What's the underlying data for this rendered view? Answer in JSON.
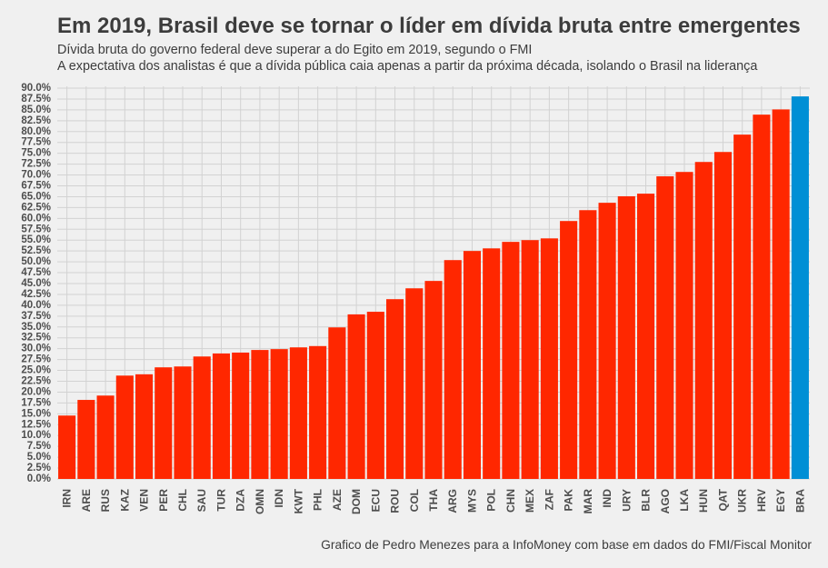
{
  "colors": {
    "background": "#F0F0F0",
    "grid": "#D2D2D2",
    "bar": "#FF2700",
    "highlight": "#008FD5",
    "text": "#3C3C3C"
  },
  "chart_data": {
    "type": "bar",
    "title": "Em 2019, Brasil deve se tornar o líder em dívida bruta entre emergentes",
    "subtitle": [
      "Dívida bruta do governo federal deve superar a do Egito em 2019, segundo o FMI",
      "A expectativa dos analistas é que a dívida pública caia apenas a partir da próxima década, isolando o Brasil na liderança"
    ],
    "caption": "Grafico de Pedro Menezes para a InfoMoney com base em dados do FMI/Fiscal Monitor",
    "xlabel": "",
    "ylabel": "",
    "categories": [
      "IRN",
      "ARE",
      "RUS",
      "KAZ",
      "VEN",
      "PER",
      "CHL",
      "SAU",
      "TUR",
      "DZA",
      "OMN",
      "IDN",
      "KWT",
      "PHL",
      "AZE",
      "DOM",
      "ECU",
      "ROU",
      "COL",
      "THA",
      "ARG",
      "MYS",
      "POL",
      "CHN",
      "MEX",
      "ZAF",
      "PAK",
      "MAR",
      "IND",
      "URY",
      "BLR",
      "AGO",
      "LKA",
      "HUN",
      "QAT",
      "UKR",
      "HRV",
      "EGY",
      "BRA"
    ],
    "values": [
      14.6,
      18.2,
      19.2,
      23.8,
      24.1,
      25.7,
      25.9,
      28.2,
      28.9,
      29.1,
      29.7,
      29.9,
      30.3,
      30.6,
      34.9,
      37.9,
      38.5,
      41.4,
      43.9,
      45.6,
      50.4,
      52.5,
      53.1,
      54.6,
      55.0,
      55.4,
      59.4,
      61.9,
      63.6,
      65.1,
      65.7,
      69.7,
      70.7,
      73.0,
      75.3,
      79.3,
      83.9,
      85.1,
      88.1
    ],
    "highlight_category": "BRA",
    "ylim": [
      0,
      90
    ],
    "y_tick_step": 2.5,
    "y_tick_labels": [
      "0.0%",
      "2.5%",
      "5.0%",
      "7.5%",
      "10.0%",
      "12.5%",
      "15.0%",
      "17.5%",
      "20.0%",
      "22.5%",
      "25.0%",
      "27.5%",
      "30.0%",
      "32.5%",
      "35.0%",
      "37.5%",
      "40.0%",
      "42.5%",
      "45.0%",
      "47.5%",
      "50.0%",
      "52.5%",
      "55.0%",
      "57.5%",
      "60.0%",
      "62.5%",
      "65.0%",
      "67.5%",
      "70.0%",
      "72.5%",
      "75.0%",
      "77.5%",
      "80.0%",
      "82.5%",
      "85.0%",
      "87.5%",
      "90.0%"
    ],
    "grid": true,
    "legend": "none"
  }
}
